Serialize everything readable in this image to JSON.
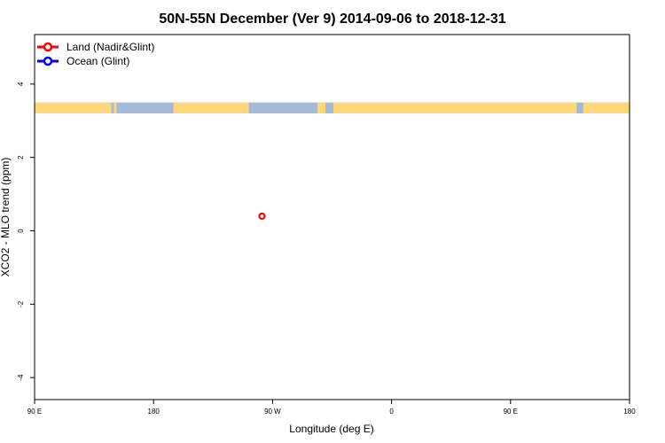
{
  "chart_data": {
    "type": "scatter",
    "title": "50N-55N December (Ver 9)   2014-09-06 to 2018-12-31",
    "xlabel": "Longitude (deg E)",
    "ylabel": "XCO2 - MLO trend (ppm)",
    "xlim": [
      0,
      360
    ],
    "ylim": [
      -4.6,
      5.35
    ],
    "x_tick_values": [
      0,
      90,
      180,
      270,
      360
    ],
    "x_tick_labels": [
      "90 E",
      "180",
      "90 W",
      "0",
      "90 E",
      "180"
    ],
    "x_tick_positions": [
      90,
      180,
      270,
      360,
      450,
      540
    ],
    "y_ticks": [
      -4,
      -2,
      0,
      2,
      4
    ],
    "legend_position": "top-left",
    "series": [
      {
        "name": "Land (Nadir&Glint)",
        "color": "#ff0000",
        "points": [
          {
            "x": 262,
            "y": 0.4
          }
        ]
      },
      {
        "name": "Ocean (Glint)",
        "color": "#0000ff",
        "points": []
      }
    ],
    "map_strip": {
      "y_range": [
        3.2,
        3.5
      ],
      "ocean_color": "#a5b9d8",
      "land_color": "#fdd77a",
      "land_segments_lon": [
        [
          90,
          148
        ],
        [
          150,
          152
        ],
        [
          195,
          252
        ],
        [
          304,
          310
        ],
        [
          316,
          500
        ],
        [
          505,
          540
        ]
      ]
    }
  }
}
